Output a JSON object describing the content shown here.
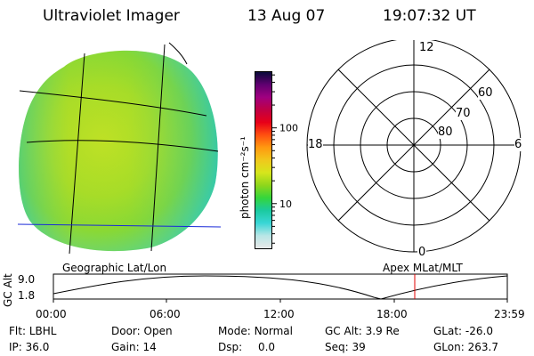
{
  "header": {
    "instrument": "Ultraviolet Imager",
    "date": "13 Aug 07",
    "time": "19:07:32 UT"
  },
  "colorbar": {
    "label": "photon cm⁻²s⁻¹",
    "ticks": [
      {
        "label": "100",
        "value": 100
      },
      {
        "label": "10",
        "value": 10
      }
    ],
    "range": [
      2.5,
      560
    ],
    "scale": "log",
    "colors": [
      "#e8e8e8",
      "#b9e6e6",
      "#39d6d6",
      "#1bcaa0",
      "#34d63c",
      "#8ed61c",
      "#d6e61c",
      "#f0c81c",
      "#ff9a10",
      "#ff5010",
      "#e80018",
      "#c00044",
      "#a00080",
      "#600070",
      "#0a0a3a"
    ]
  },
  "left_panel": {
    "caption": "Geographic Lat/Lon"
  },
  "polar_plot": {
    "caption": "Apex MLat/MLT",
    "mlt_labels": {
      "top": "12",
      "left": "18",
      "right": "6",
      "bottom": "0"
    },
    "ring_labels": [
      "60",
      "70",
      "80"
    ]
  },
  "altitude_plot": {
    "ylabel": "GC Alt",
    "yticks": [
      "9.0",
      "1.8"
    ],
    "xticks": [
      "00:00",
      "06:00",
      "12:00",
      "18:00",
      "23:59"
    ]
  },
  "footer": {
    "col1": [
      {
        "key": "Flt:",
        "value": "LBHL"
      },
      {
        "key": "IP:",
        "value": "36.0"
      }
    ],
    "col2": [
      {
        "key": "Door:",
        "value": "Open"
      },
      {
        "key": "Gain:",
        "value": "14"
      }
    ],
    "col3": [
      {
        "key": "Mode:",
        "value": "Normal"
      },
      {
        "key": "Dsp:",
        "value": "0.0"
      }
    ],
    "col4": [
      {
        "key": "GC Alt:",
        "value": "3.9 Re"
      },
      {
        "key": "Seq:",
        "value": "39"
      }
    ],
    "col5": [
      {
        "key": "GLat:",
        "value": "-26.0"
      },
      {
        "key": "GLon:",
        "value": "263.7"
      }
    ]
  }
}
